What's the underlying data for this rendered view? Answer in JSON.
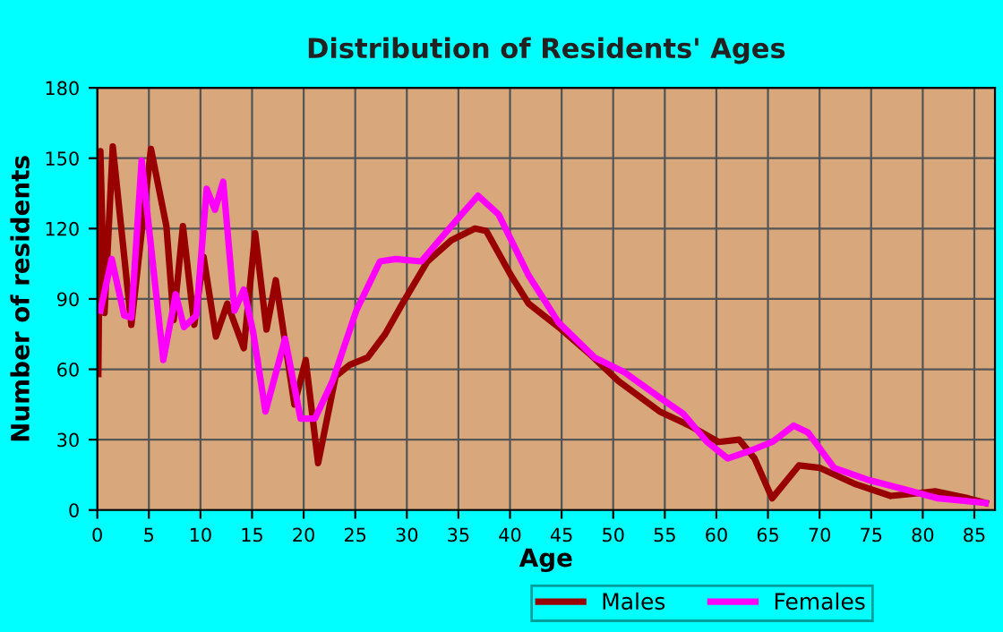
{
  "chart_data": {
    "type": "line",
    "title": "Distribution of Residents' Ages",
    "xlabel": "Age",
    "ylabel": "Number of residents",
    "xlim": [
      0,
      87
    ],
    "xticks": [
      0,
      5,
      10,
      15,
      20,
      25,
      30,
      35,
      40,
      45,
      50,
      55,
      60,
      65,
      70,
      75,
      80,
      85
    ],
    "ylim": [
      0,
      180
    ],
    "yticks": [
      0,
      30,
      60,
      90,
      120,
      150,
      180
    ],
    "grid": true,
    "legend": "bottom",
    "marker": "none",
    "line_style": "solid",
    "series": [
      {
        "name": "Males",
        "color": "#990000",
        "x": [
          0.1,
          0.3,
          0.7,
          1.5,
          3.3,
          5.2,
          6.7,
          7.4,
          8.3,
          9.4,
          10.3,
          11.5,
          12.6,
          14.2,
          15.3,
          16.4,
          17.3,
          19.1,
          20.2,
          21.4,
          23.1,
          24.5,
          26.2,
          27.9,
          29.7,
          32,
          34.3,
          36.6,
          37.7,
          40.1,
          41.8,
          44.7,
          47.6,
          50.5,
          54.5,
          57.4,
          60.2,
          62.2,
          63.7,
          65.4,
          68,
          70,
          73.5,
          76.9,
          81.2,
          84.4,
          86.1
        ],
        "values": [
          58,
          153,
          84,
          155,
          79,
          154,
          121,
          81,
          121,
          79,
          108,
          74,
          88,
          69,
          118,
          77,
          98,
          45,
          64,
          20,
          57,
          62,
          65,
          75,
          89,
          106,
          115,
          120,
          119,
          100,
          88,
          78,
          67,
          55,
          42,
          36,
          29,
          30,
          22,
          5,
          19,
          18,
          11,
          6,
          8,
          5,
          3
        ]
      },
      {
        "name": "Females",
        "color": "#ff00ff",
        "x": [
          0.3,
          1.4,
          2.6,
          3.3,
          4.3,
          6.4,
          7.6,
          8.4,
          9.6,
          10.6,
          11.4,
          12.2,
          13.3,
          14.2,
          15.1,
          16.3,
          18.2,
          19.7,
          21.1,
          22.8,
          25.1,
          27.4,
          28.9,
          31.4,
          34.3,
          36.9,
          38.9,
          41.8,
          44.7,
          48.2,
          51,
          54.5,
          56.8,
          59.1,
          61.1,
          63.1,
          65.4,
          67.5,
          68.9,
          71.4,
          74.6,
          78.1,
          81.5,
          86.1
        ],
        "values": [
          85,
          107,
          83,
          82,
          149,
          64,
          92,
          78,
          83,
          137,
          128,
          140,
          85,
          94,
          76,
          42,
          73,
          39,
          39,
          55,
          85,
          106,
          107,
          106,
          121,
          134,
          126,
          100,
          80,
          65,
          59,
          48,
          41,
          29,
          22,
          25,
          29,
          36,
          33,
          18,
          13,
          9,
          5,
          3
        ]
      }
    ]
  }
}
